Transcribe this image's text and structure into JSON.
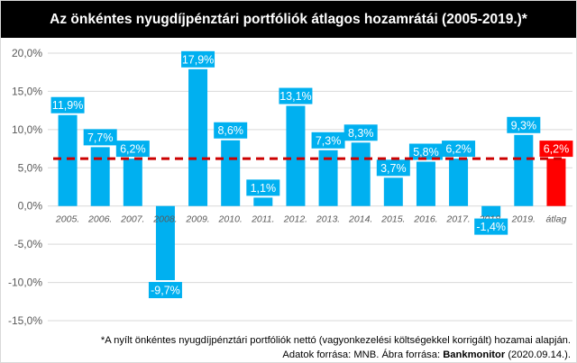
{
  "title": "Az önkéntes nyugdíjpénztári portfóliók átlagos hozamrátái (2005-2019.)*",
  "footnote": "*A nyílt önkéntes nyugdíjpénztári portfóliók nettó (vagyonkezelési költségekkel korrigált) hozamai alapján.",
  "source": {
    "prefix": "Adatok forrása: MNB. Ábra forrása: ",
    "brand": "Bankmonitor",
    "suffix": " (2020.09.14.)."
  },
  "colors": {
    "bar": "#00b0f0",
    "bar_average": "#ff0000",
    "label_background": "#00b0f0",
    "label_text": "#ffffff",
    "average_line": "#cc0000",
    "axis_text": "#595959",
    "gridline": "#d9d9d9"
  },
  "chart_data": {
    "type": "bar",
    "categories": [
      "2005.",
      "2006.",
      "2007.",
      "2008.",
      "2009.",
      "2010.",
      "2011.",
      "2012.",
      "2013.",
      "2014.",
      "2015.",
      "2016.",
      "2017.",
      "2018.",
      "2019.",
      "átlag"
    ],
    "values": [
      11.9,
      7.7,
      6.2,
      -9.7,
      17.9,
      8.6,
      1.1,
      13.1,
      7.3,
      8.3,
      3.7,
      5.8,
      6.2,
      -1.4,
      9.3,
      6.2
    ],
    "value_labels": [
      "11,9%",
      "7,7%",
      "6,2%",
      "-9,7%",
      "17,9%",
      "8,6%",
      "1,1%",
      "13,1%",
      "7,3%",
      "8,3%",
      "3,7%",
      "5,8%",
      "6,2%",
      "-1,4%",
      "9,3%",
      "6,2%"
    ],
    "ylim": [
      -15,
      20
    ],
    "yticks": [
      20,
      15,
      10,
      5,
      0,
      -5,
      -10,
      -15
    ],
    "ytick_labels": [
      "20,0%",
      "15,0%",
      "10,0%",
      "5,0%",
      "0,0%",
      "-5,0%",
      "-10,0%",
      "-15,0%"
    ],
    "average": 6.2,
    "average_line": "dashed",
    "highlighted_category": "átlag",
    "grid": true,
    "legend": "none",
    "xlabel": "",
    "ylabel": ""
  }
}
